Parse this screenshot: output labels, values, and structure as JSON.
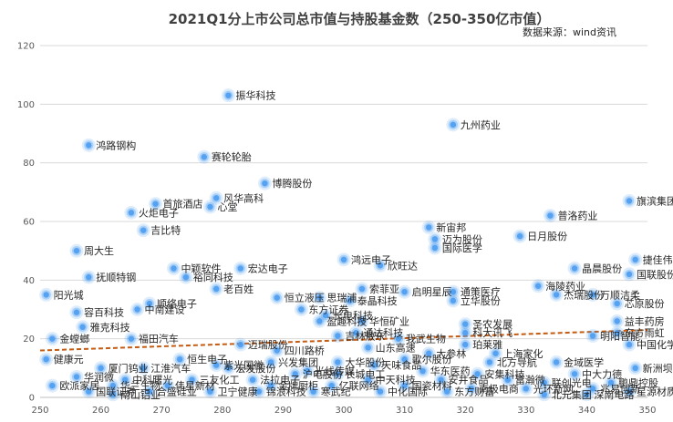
{
  "chart_data": {
    "type": "scatter",
    "title": "2021Q1分上市公司总市值与持股基金数（250-350亿市值）",
    "source_note": "数据来源：wind资讯",
    "xlim": [
      250,
      350
    ],
    "ylim": [
      0,
      120
    ],
    "x_ticks": [
      250,
      260,
      270,
      280,
      290,
      300,
      310,
      320,
      330,
      340,
      350
    ],
    "y_ticks": [
      0,
      20,
      40,
      60,
      80,
      100,
      120
    ],
    "grid": "horizontal",
    "marker_color": "#4a9cf0",
    "trendline": {
      "type": "linear",
      "color": "#c55a11",
      "style": "dashed",
      "start": [
        250,
        16
      ],
      "end": [
        350,
        23
      ]
    },
    "points": [
      {
        "label": "振华科技",
        "x": 281,
        "y": 103
      },
      {
        "label": "九州药业",
        "x": 318,
        "y": 93
      },
      {
        "label": "鸿路钢构",
        "x": 258,
        "y": 86
      },
      {
        "label": "赛轮轮胎",
        "x": 277,
        "y": 82
      },
      {
        "label": "博腾股份",
        "x": 287,
        "y": 73
      },
      {
        "label": "风华高科",
        "x": 279,
        "y": 68
      },
      {
        "label": "旗滨集团",
        "x": 347,
        "y": 67
      },
      {
        "label": "首旅酒店",
        "x": 269,
        "y": 66
      },
      {
        "label": "心堂",
        "x": 278,
        "y": 65
      },
      {
        "label": "火炬电子",
        "x": 265,
        "y": 63
      },
      {
        "label": "普洛药业",
        "x": 334,
        "y": 62
      },
      {
        "label": "新宙邦",
        "x": 314,
        "y": 58
      },
      {
        "label": "吉比特",
        "x": 267,
        "y": 57
      },
      {
        "label": "日月股份",
        "x": 329,
        "y": 55
      },
      {
        "label": "迈为股份",
        "x": 315,
        "y": 54
      },
      {
        "label": "国际医学",
        "x": 315,
        "y": 51
      },
      {
        "label": "周大生",
        "x": 256,
        "y": 50
      },
      {
        "label": "鸿远电子",
        "x": 300,
        "y": 47
      },
      {
        "label": "捷佳伟创",
        "x": 348,
        "y": 47
      },
      {
        "label": "欣旺达",
        "x": 306,
        "y": 45
      },
      {
        "label": "中颖软件",
        "x": 272,
        "y": 44
      },
      {
        "label": "宏达电子",
        "x": 283,
        "y": 44
      },
      {
        "label": "晶晨股份",
        "x": 338,
        "y": 44
      },
      {
        "label": "国联股份",
        "x": 347,
        "y": 42
      },
      {
        "label": "抚顺特钢",
        "x": 258,
        "y": 41
      },
      {
        "label": "裕同科技",
        "x": 274,
        "y": 41
      },
      {
        "label": "海陵药业",
        "x": 332,
        "y": 38
      },
      {
        "label": "老百姓",
        "x": 279,
        "y": 37
      },
      {
        "label": "索菲亚",
        "x": 303,
        "y": 37
      },
      {
        "label": "启明星辰",
        "x": 310,
        "y": 36
      },
      {
        "label": "通策医疗",
        "x": 318,
        "y": 36
      },
      {
        "label": "杰瑞股份",
        "x": 335,
        "y": 35
      },
      {
        "label": "万顺洁柔",
        "x": 341,
        "y": 35
      },
      {
        "label": "阳光城",
        "x": 251,
        "y": 35
      },
      {
        "label": "恒立液压",
        "x": 289,
        "y": 34
      },
      {
        "label": "思瑞浦",
        "x": 296,
        "y": 34
      },
      {
        "label": "泰晶科技",
        "x": 301,
        "y": 33
      },
      {
        "label": "立华股份",
        "x": 318,
        "y": 33
      },
      {
        "label": "芯原股份",
        "x": 345,
        "y": 32
      },
      {
        "label": "顺络电子",
        "x": 268,
        "y": 32
      },
      {
        "label": "中南建设",
        "x": 266,
        "y": 30
      },
      {
        "label": "容百科技",
        "x": 256,
        "y": 29
      },
      {
        "label": "东方证券",
        "x": 293,
        "y": 30
      },
      {
        "label": "长电科技",
        "x": 297,
        "y": 28
      },
      {
        "label": "盈趣科技",
        "x": 296,
        "y": 26
      },
      {
        "label": "华恒矿业",
        "x": 303,
        "y": 26
      },
      {
        "label": "圣农发展",
        "x": 320,
        "y": 25
      },
      {
        "label": "益丰药房",
        "x": 345,
        "y": 26
      },
      {
        "label": "雅克科技",
        "x": 257,
        "y": 24
      },
      {
        "label": "科大讯飞",
        "x": 320,
        "y": 22
      },
      {
        "label": "明阳智能",
        "x": 341,
        "y": 21
      },
      {
        "label": "东方雨虹",
        "x": 345,
        "y": 22
      },
      {
        "label": "吉林敖东",
        "x": 299,
        "y": 21
      },
      {
        "label": "通达科技",
        "x": 302,
        "y": 22
      },
      {
        "label": "我武生物",
        "x": 309,
        "y": 20
      },
      {
        "label": "福田汽车",
        "x": 265,
        "y": 20
      },
      {
        "label": "金螳螂",
        "x": 252,
        "y": 20
      },
      {
        "label": "中国化学",
        "x": 347,
        "y": 18
      },
      {
        "label": "迈瑞股份",
        "x": 283,
        "y": 18
      },
      {
        "label": "珀莱雅",
        "x": 320,
        "y": 18
      },
      {
        "label": "四川路桥",
        "x": 289,
        "y": 16
      },
      {
        "label": "山东高速",
        "x": 304,
        "y": 17
      },
      {
        "label": "上海家化",
        "x": 325,
        "y": 15
      },
      {
        "label": "大参林",
        "x": 314,
        "y": 15
      },
      {
        "label": "健康元",
        "x": 251,
        "y": 13
      },
      {
        "label": "恒生电子",
        "x": 273,
        "y": 13
      },
      {
        "label": "兴发集团",
        "x": 288,
        "y": 12
      },
      {
        "label": "大华股份",
        "x": 299,
        "y": 12
      },
      {
        "label": "天味食品",
        "x": 305,
        "y": 11
      },
      {
        "label": "北方导航",
        "x": 324,
        "y": 12
      },
      {
        "label": "金域医学",
        "x": 335,
        "y": 12
      },
      {
        "label": "歌尔股份",
        "x": 310,
        "y": 13
      },
      {
        "label": "紫光国微",
        "x": 279,
        "y": 11
      },
      {
        "label": "厦门钨业",
        "x": 260,
        "y": 10
      },
      {
        "label": "江淮汽车",
        "x": 267,
        "y": 10
      },
      {
        "label": "宏发股份",
        "x": 281,
        "y": 10
      },
      {
        "label": "光线传媒",
        "x": 294,
        "y": 9
      },
      {
        "label": "华东医药",
        "x": 313,
        "y": 9
      },
      {
        "label": "新洲坝",
        "x": 348,
        "y": 10
      },
      {
        "label": "沪电股份",
        "x": 292,
        "y": 8
      },
      {
        "label": "长城电工",
        "x": 299,
        "y": 8
      },
      {
        "label": "安集科技",
        "x": 322,
        "y": 8
      },
      {
        "label": "中大力德",
        "x": 338,
        "y": 8
      },
      {
        "label": "华润微",
        "x": 256,
        "y": 7
      },
      {
        "label": "中科曙光",
        "x": 264,
        "y": 6
      },
      {
        "label": "三友化工",
        "x": 275,
        "y": 6
      },
      {
        "label": "法拉电子",
        "x": 285,
        "y": 6
      },
      {
        "label": "中天科技",
        "x": 304,
        "y": 6
      },
      {
        "label": "安井食品",
        "x": 316,
        "y": 6
      },
      {
        "label": "富瀚微",
        "x": 327,
        "y": 6
      },
      {
        "label": "联创光电",
        "x": 333,
        "y": 5
      },
      {
        "label": "鹏鼎控股",
        "x": 344,
        "y": 5
      },
      {
        "label": "欧派家居",
        "x": 252,
        "y": 4
      },
      {
        "label": "华兰生物",
        "x": 262,
        "y": 4
      },
      {
        "label": "伟星新材",
        "x": 271,
        "y": 4
      },
      {
        "label": "金牌厨柜",
        "x": 288,
        "y": 4
      },
      {
        "label": "亿联网络",
        "x": 298,
        "y": 4
      },
      {
        "label": "国瓷材料",
        "x": 310,
        "y": 4
      },
      {
        "label": "南极电商",
        "x": 321,
        "y": 3
      },
      {
        "label": "光环新网",
        "x": 330,
        "y": 3
      },
      {
        "label": "兆易创新",
        "x": 341,
        "y": 3
      },
      {
        "label": "星源材质",
        "x": 347,
        "y": 2
      },
      {
        "label": "国联证券",
        "x": 258,
        "y": 2
      },
      {
        "label": "合盛硅业",
        "x": 268,
        "y": 2
      },
      {
        "label": "卫宁健康",
        "x": 278,
        "y": 2
      },
      {
        "label": "锦浪科技",
        "x": 286,
        "y": 2
      },
      {
        "label": "寒武纪",
        "x": 295,
        "y": 2
      },
      {
        "label": "中化国际",
        "x": 306,
        "y": 2
      },
      {
        "label": "东方财富",
        "x": 317,
        "y": 2
      },
      {
        "label": "北元集团",
        "x": 333,
        "y": 1
      },
      {
        "label": "深南电路",
        "x": 340,
        "y": 1
      },
      {
        "label": "南山铝业",
        "x": 262,
        "y": 1
      }
    ]
  }
}
